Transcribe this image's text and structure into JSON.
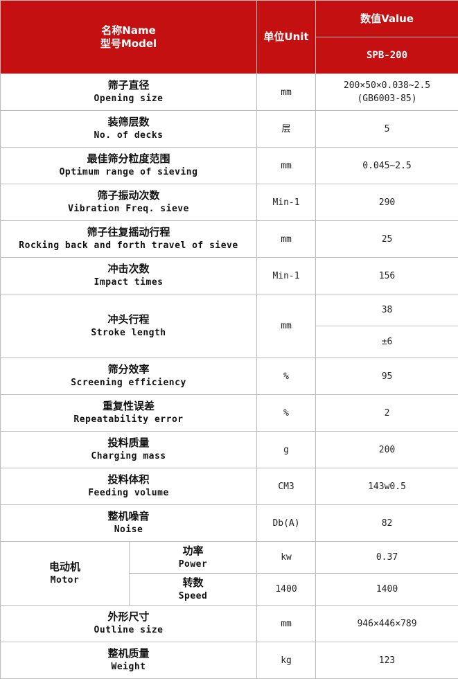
{
  "header": {
    "name_zh": "名称Name",
    "model_zh": "型号Model",
    "unit": "单位Unit",
    "value": "数值Value",
    "model": "SPB-200"
  },
  "header_color": "#c41010",
  "rows": [
    {
      "zh": "筛子直径",
      "en": "Opening size",
      "unit": "mm",
      "value": "200×50×0.038~2.5",
      "value2": "(GB6003-85)"
    },
    {
      "zh": "装筛层数",
      "en": "No. of decks",
      "unit": "层",
      "value": "5"
    },
    {
      "zh": "最佳筛分粒度范围",
      "en": "Optimum range of sieving",
      "unit": "mm",
      "value": "0.045~2.5"
    },
    {
      "zh": "筛子振动次数",
      "en": "Vibration Freq. sieve",
      "unit": "Min-1",
      "value": "290"
    },
    {
      "zh": "筛子往复摇动行程",
      "en": "Rocking back and forth travel of sieve",
      "unit": "mm",
      "value": "25"
    },
    {
      "zh": "冲击次数",
      "en": "Impact times",
      "unit": "Min-1",
      "value": "156"
    },
    {
      "zh": "冲头行程",
      "en": "Stroke length",
      "unit": "mm",
      "value": "38",
      "value2": "±6"
    },
    {
      "zh": "筛分效率",
      "en": "Screening efficiency",
      "unit": "%",
      "value": "95"
    },
    {
      "zh": "重复性误差",
      "en": "Repeatability error",
      "unit": "%",
      "value": "2"
    },
    {
      "zh": "投料质量",
      "en": "Charging mass",
      "unit": "g",
      "value": "200"
    },
    {
      "zh": "投料体积",
      "en": "Feeding volume",
      "unit": "CM3",
      "value": "143w0.5"
    },
    {
      "zh": "整机噪音",
      "en": "Noise",
      "unit": "Db(A)",
      "value": "82"
    },
    {
      "zh": "外形尺寸",
      "en": "Outline size",
      "unit": "mm",
      "value": "946×446×789"
    },
    {
      "zh": "整机质量",
      "en": "Weight",
      "unit": "kg",
      "value": "123"
    }
  ],
  "motor": {
    "zh": "电动机",
    "en": "Motor",
    "items": [
      {
        "zh": "功率",
        "en": "Power",
        "unit": "kw",
        "value": "0.37"
      },
      {
        "zh": "转数",
        "en": "Speed",
        "unit": "1400",
        "value": "1400"
      }
    ]
  }
}
